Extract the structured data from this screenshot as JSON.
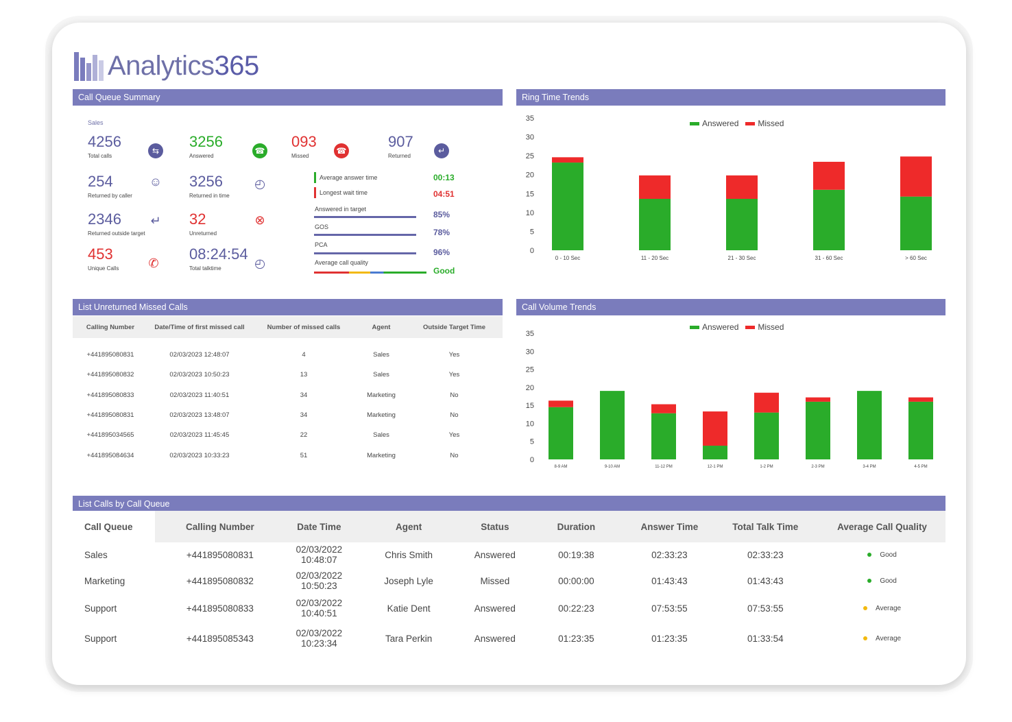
{
  "app": {
    "logo_main": "Analytics",
    "logo_accent": "365"
  },
  "colors": {
    "accent": "#7a7cbc",
    "answered": "#2aac2a",
    "missed": "#ee2a2a",
    "purple_text": "#5b5c9e",
    "green_text": "#2aac2a",
    "red_text": "#e03131"
  },
  "summary": {
    "title": "Call Queue Summary",
    "queue_label": "Sales",
    "tiles": [
      {
        "value": "4256",
        "label": "Total calls",
        "icon": "transfer-icon"
      },
      {
        "value": "3256",
        "label": "Answered",
        "icon": "phone-answered-icon"
      },
      {
        "value": "093",
        "label": "Missed",
        "icon": "phone-missed-icon"
      },
      {
        "value": "907",
        "label": "Returned",
        "icon": "return-icon"
      },
      {
        "value": "254",
        "label": "Returned by caller",
        "icon": "user-icon"
      },
      {
        "value": "3256",
        "label": "Returned in time",
        "icon": "clock-icon"
      },
      {
        "value": "2346",
        "label": "Returned outside target",
        "icon": "return-arrow-icon"
      },
      {
        "value": "32",
        "label": "Unreturned",
        "icon": "x-circle-icon"
      },
      {
        "value": "453",
        "label": "Unique Calls",
        "icon": "phone-x-icon"
      },
      {
        "value": "08:24:54",
        "label": "Total talktime",
        "icon": "clock-icon"
      }
    ],
    "kpis": [
      {
        "label": "Average answer time",
        "value": "00:13"
      },
      {
        "label": "Longest wait time",
        "value": "04:51"
      },
      {
        "label": "Answered in target",
        "value": "85%"
      },
      {
        "label": "GOS",
        "value": "78%"
      },
      {
        "label": "PCA",
        "value": "96%"
      },
      {
        "label": "Average call quality",
        "value": "Good"
      }
    ]
  },
  "ring_panel": {
    "title": "Ring Time Trends"
  },
  "volume_panel": {
    "title": "Call Volume Trends"
  },
  "chart_data": [
    {
      "type": "bar",
      "title": "Ring Time Trends",
      "stacked": true,
      "categories": [
        "0 - 10 Sec",
        "11 - 20 Sec",
        "21 - 30 Sec",
        "31 - 60 Sec",
        ">      60 Sec"
      ],
      "series": [
        {
          "name": "Answered",
          "values": [
            23.2,
            13.6,
            13.6,
            16,
            14.2
          ],
          "color": "#2aac2a"
        },
        {
          "name": "Missed",
          "values": [
            1.4,
            6.2,
            6.2,
            7.4,
            10.6
          ],
          "color": "#ee2a2a"
        }
      ],
      "ylim": [
        0,
        35
      ],
      "yticks": [
        0,
        5,
        10,
        15,
        20,
        25,
        30,
        35
      ],
      "legend": "top"
    },
    {
      "type": "bar",
      "title": "Call Volume Trends",
      "stacked": true,
      "categories": [
        "8-9 AM",
        "9-10 AM",
        "11-12 PM",
        "12-1 PM",
        "1-2 PM",
        "2-3 PM",
        "3-4 PM",
        "4-5 PM"
      ],
      "series": [
        {
          "name": "Answered",
          "values": [
            14.5,
            19,
            12.8,
            3.8,
            13,
            16,
            19,
            16
          ],
          "color": "#2aac2a"
        },
        {
          "name": "Missed",
          "values": [
            1.8,
            0,
            2.5,
            9.5,
            5.5,
            1.2,
            0,
            1.2
          ],
          "color": "#ee2a2a"
        }
      ],
      "ylim": [
        0,
        35
      ],
      "yticks": [
        0,
        5,
        10,
        15,
        20,
        25,
        30,
        35
      ],
      "legend": "top"
    }
  ],
  "missed_list": {
    "title": "List Unreturned Missed Calls",
    "columns": [
      "Calling Number",
      "Date/Time of first missed call",
      "Number of missed calls",
      "Agent",
      "Outside Target Time"
    ],
    "rows": [
      [
        "+441895080831",
        "02/03/2023 12:48:07",
        "4",
        "Sales",
        "Yes"
      ],
      [
        "+441895080832",
        "02/03/2023 10:50:23",
        "13",
        "Sales",
        "Yes"
      ],
      [
        "+441895080833",
        "02/03/2023 11:40:51",
        "34",
        "Marketing",
        "No"
      ],
      [
        "+441895080831",
        "02/03/2023 13:48:07",
        "34",
        "Marketing",
        "No"
      ],
      [
        "+441895034565",
        "02/03/2023 11:45:45",
        "22",
        "Sales",
        "Yes"
      ],
      [
        "+441895084634",
        "02/03/2023 10:33:23",
        "51",
        "Marketing",
        "No"
      ]
    ]
  },
  "calls_list": {
    "title": "List Calls by Call Queue",
    "columns": [
      "Call Queue",
      "Calling Number",
      "Date Time",
      "Agent",
      "Status",
      "Duration",
      "Answer Time",
      "Total Talk Time",
      "Average Call Quality"
    ],
    "rows": [
      [
        "Sales",
        "+441895080831",
        "02/03/2022 10:48:07",
        "Chris Smith",
        "Answered",
        "00:19:38",
        "02:33:23",
        "02:33:23",
        "Good"
      ],
      [
        "Marketing",
        "+441895080832",
        "02/03/2022 10:50:23",
        "Joseph Lyle",
        "Missed",
        "00:00:00",
        "01:43:43",
        "01:43:43",
        "Good"
      ],
      [
        "Support",
        "+441895080833",
        "02/03/2022 10:40:51",
        "Katie Dent",
        "Answered",
        "00:22:23",
        "07:53:55",
        "07:53:55",
        "Average"
      ],
      [
        "Support",
        "+441895085343",
        "02/03/2022 10:23:34",
        "Tara Perkin",
        "Answered",
        "01:23:35",
        "01:23:35",
        "01:33:54",
        "Average"
      ]
    ],
    "quality_colors": {
      "Good": "#2aac2a",
      "Average": "#f2b90f"
    }
  }
}
